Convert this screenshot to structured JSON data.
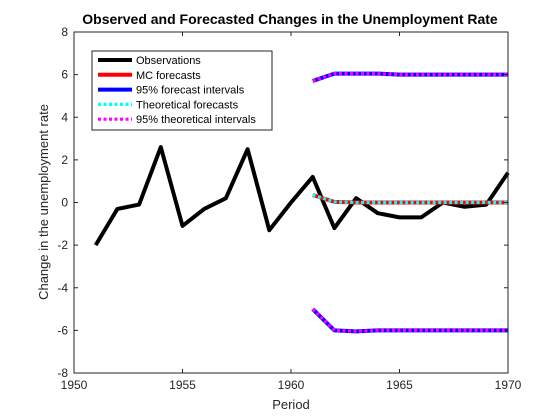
{
  "chart_data": {
    "type": "line",
    "title": "Observed and Forecasted Changes in the Unemployment Rate",
    "xlabel": "Period",
    "ylabel": "Change in the unemployment rate",
    "xlim": [
      1950,
      1970
    ],
    "ylim": [
      -8,
      8
    ],
    "xticks": [
      1950,
      1955,
      1960,
      1965,
      1970
    ],
    "yticks": [
      -8,
      -6,
      -4,
      -2,
      0,
      2,
      4,
      6,
      8
    ],
    "grid": false,
    "legend_position": "top-left",
    "series": [
      {
        "name": "Observations",
        "color": "#000000",
        "style": "solid",
        "x": [
          1951,
          1952,
          1953,
          1954,
          1955,
          1956,
          1957,
          1958,
          1959,
          1960,
          1961,
          1962,
          1963,
          1964,
          1965,
          1966,
          1967,
          1968,
          1969,
          1970
        ],
        "y": [
          -2.0,
          -0.3,
          -0.1,
          2.6,
          -1.1,
          -0.3,
          0.2,
          2.5,
          -1.3,
          0.0,
          1.2,
          -1.2,
          0.2,
          -0.5,
          -0.7,
          -0.7,
          0.0,
          -0.2,
          -0.1,
          1.4
        ]
      },
      {
        "name": "MC forecasts",
        "color": "#ff0000",
        "style": "solid",
        "x": [
          1961,
          1962,
          1963,
          1964,
          1965,
          1966,
          1967,
          1968,
          1969,
          1970
        ],
        "y": [
          0.35,
          0.03,
          0.0,
          0.0,
          0.0,
          0.0,
          0.0,
          0.0,
          0.0,
          0.0
        ]
      },
      {
        "name": "95% forecast intervals",
        "color": "#0000ff",
        "style": "solid",
        "x": [
          1961,
          1962,
          1963,
          1964,
          1965,
          1966,
          1967,
          1968,
          1969,
          1970
        ],
        "upper": [
          5.7,
          6.05,
          6.05,
          6.05,
          6.0,
          6.0,
          6.0,
          6.0,
          6.0,
          6.0
        ],
        "lower": [
          -5.0,
          -6.0,
          -6.05,
          -6.0,
          -6.0,
          -6.0,
          -6.0,
          -6.0,
          -6.0,
          -6.0
        ]
      },
      {
        "name": "Theoretical forecasts",
        "color": "#00ffff",
        "style": "dotted",
        "x": [
          1961,
          1962,
          1963,
          1964,
          1965,
          1966,
          1967,
          1968,
          1969,
          1970
        ],
        "y": [
          0.35,
          0.03,
          0.0,
          0.0,
          0.0,
          0.0,
          0.0,
          0.0,
          0.0,
          0.0
        ]
      },
      {
        "name": "95% theoretical intervals",
        "color": "#ff00ff",
        "style": "dotted",
        "x": [
          1961,
          1962,
          1963,
          1964,
          1965,
          1966,
          1967,
          1968,
          1969,
          1970
        ],
        "upper": [
          5.7,
          6.05,
          6.05,
          6.05,
          6.0,
          6.0,
          6.0,
          6.0,
          6.0,
          6.0
        ],
        "lower": [
          -5.0,
          -6.0,
          -6.05,
          -6.0,
          -6.0,
          -6.0,
          -6.0,
          -6.0,
          -6.0,
          -6.0
        ]
      }
    ]
  }
}
